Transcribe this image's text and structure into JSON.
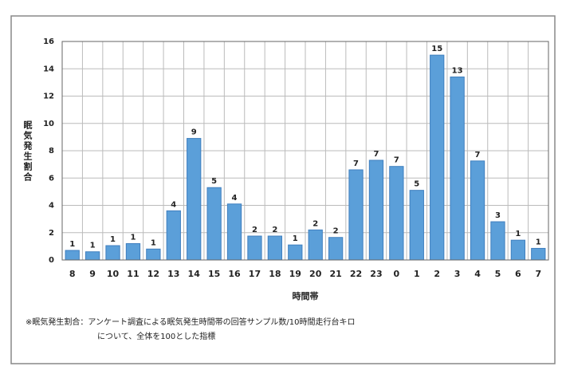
{
  "chart_data": {
    "type": "bar",
    "y_label": "眠気発生割合",
    "x_label": "時間帯",
    "notes": [
      "※眠気発生割合：アンケート調査による眠気発生時間帯の回答サンプル数/10時間走行台キロ",
      "について、全体を100とした指標"
    ],
    "categories": [
      "8",
      "9",
      "10",
      "11",
      "12",
      "13",
      "14",
      "15",
      "16",
      "17",
      "18",
      "19",
      "20",
      "21",
      "22",
      "23",
      "0",
      "1",
      "2",
      "3",
      "4",
      "5",
      "6",
      "7"
    ],
    "values": [
      0.7,
      0.6,
      1.05,
      1.2,
      0.8,
      3.6,
      8.9,
      5.3,
      4.1,
      1.75,
      1.75,
      1.1,
      2.2,
      1.65,
      6.6,
      7.3,
      6.85,
      5.1,
      15.0,
      13.4,
      7.25,
      2.8,
      1.45,
      0.85
    ],
    "value_labels": [
      "1",
      "1",
      "1",
      "1",
      "1",
      "4",
      "9",
      "5",
      "4",
      "2",
      "2",
      "1",
      "2",
      "2",
      "7",
      "7",
      "7",
      "5",
      "15",
      "13",
      "7",
      "3",
      "1",
      "1"
    ],
    "color": "#5b9fd9",
    "ylim": [
      0,
      16
    ],
    "yticks": [
      0,
      2,
      4,
      6,
      8,
      10,
      12,
      14,
      16
    ],
    "grid": true
  }
}
